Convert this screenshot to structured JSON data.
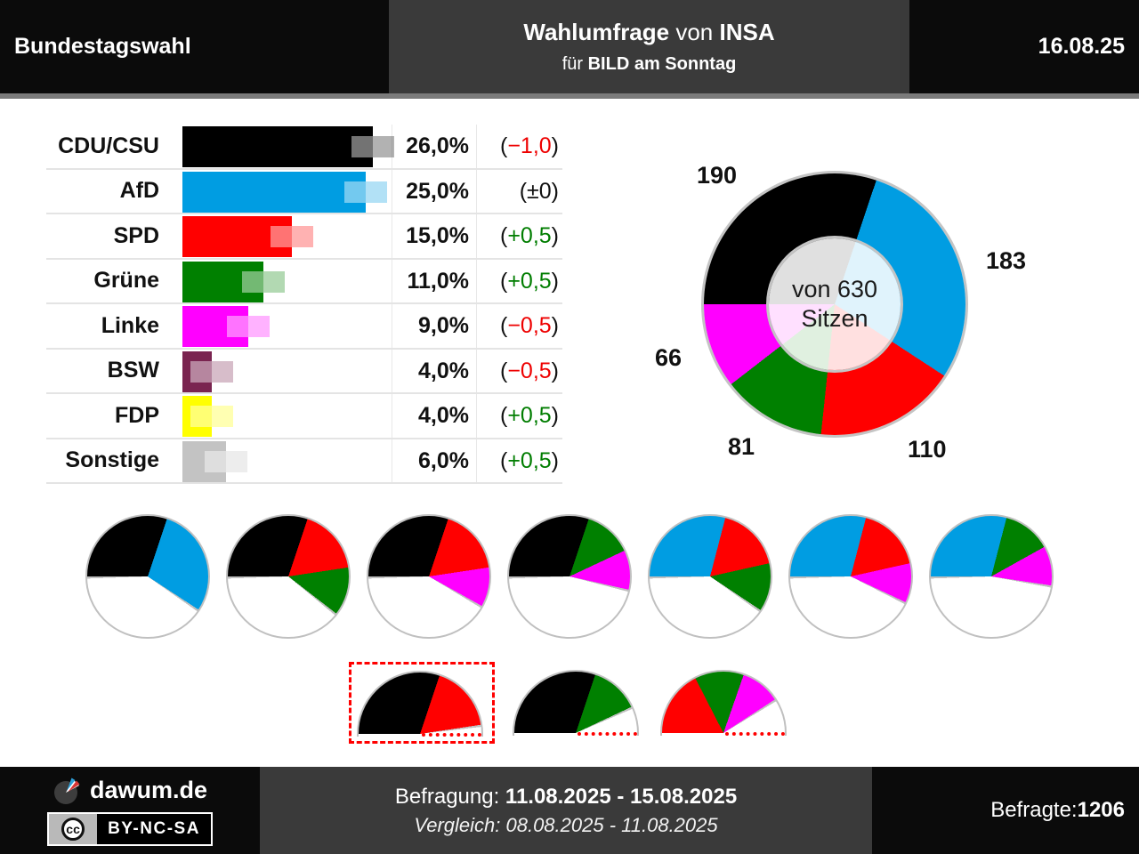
{
  "header": {
    "title": "Bundestagswahl",
    "center": {
      "bold1": "Wahlumfrage",
      "mid": " von ",
      "bold2": "INSA",
      "line2_pre": "für ",
      "line2_bold": "BILD am Sonntag"
    },
    "date": "16.08.25"
  },
  "colors": {
    "CDU/CSU": "#000000",
    "AfD": "#009de2",
    "SPD": "#ff0000",
    "Grüne": "#008000",
    "Linke": "#ff00ff",
    "BSW": "#7a2450",
    "FDP": "#ffff00",
    "Sonstige": "#c3c3c3",
    "positive_text": "#007d00",
    "negative_text": "#ee0000",
    "neutral_text": "#111111",
    "pie_border": "#c0c0c0",
    "highlight_red": "#ff0000"
  },
  "chart_data": [
    {
      "type": "bar",
      "orientation": "horizontal",
      "unit": "%",
      "categories": [
        "CDU/CSU",
        "AfD",
        "SPD",
        "Grüne",
        "Linke",
        "BSW",
        "FDP",
        "Sonstige"
      ],
      "values": [
        26.0,
        25.0,
        15.0,
        11.0,
        9.0,
        4.0,
        4.0,
        6.0
      ],
      "value_labels": [
        "26,0%",
        "25,0%",
        "15,0%",
        "11,0%",
        "9,0%",
        "4,0%",
        "4,0%",
        "6,0%"
      ],
      "changes": [
        -1.0,
        0,
        0.5,
        0.5,
        -0.5,
        -0.5,
        0.5,
        0.5
      ],
      "change_labels": [
        "−1,0",
        "±0",
        "+0,5",
        "+0,5",
        "−0,5",
        "−0,5",
        "+0,5",
        "+0,5"
      ],
      "xlim": [
        0,
        30
      ]
    },
    {
      "type": "donut",
      "total_seats": 630,
      "center_lines": [
        "von 630",
        "Sitzen"
      ],
      "segments": [
        {
          "party": "CDU/CSU",
          "seats": 190,
          "label": "190"
        },
        {
          "party": "AfD",
          "seats": 183,
          "label": "183"
        },
        {
          "party": "SPD",
          "seats": 110,
          "label": "110"
        },
        {
          "party": "Grüne",
          "seats": 81,
          "label": "81"
        },
        {
          "party": "Linke",
          "seats": 66,
          "label": "66"
        }
      ]
    },
    {
      "type": "pie",
      "total_seats": 630,
      "half_arc_seats": 315,
      "full_pies": [
        {
          "parties": [
            "CDU/CSU",
            "AfD"
          ]
        },
        {
          "parties": [
            "CDU/CSU",
            "SPD",
            "Grüne"
          ]
        },
        {
          "parties": [
            "CDU/CSU",
            "SPD",
            "Linke"
          ]
        },
        {
          "parties": [
            "CDU/CSU",
            "Grüne",
            "Linke"
          ]
        },
        {
          "parties": [
            "AfD",
            "SPD",
            "Grüne"
          ]
        },
        {
          "parties": [
            "AfD",
            "SPD",
            "Linke"
          ]
        },
        {
          "parties": [
            "AfD",
            "Grüne",
            "Linke"
          ]
        }
      ],
      "half_pies": [
        {
          "parties": [
            "CDU/CSU",
            "SPD"
          ],
          "highlighted": true
        },
        {
          "parties": [
            "CDU/CSU",
            "Grüne"
          ],
          "highlighted": false
        },
        {
          "parties": [
            "SPD",
            "Grüne",
            "Linke"
          ],
          "highlighted": false
        }
      ]
    }
  ],
  "footer": {
    "brand": "dawum.de",
    "cc_letters": "cc",
    "license": "BY-NC-SA",
    "survey_label": "Befragung: ",
    "survey_dates": "11.08.2025 - 15.08.2025",
    "comparison_line": "Vergleich: 08.08.2025 - 11.08.2025",
    "respondents_label": "Befragte: ",
    "respondents_value": "1206"
  }
}
